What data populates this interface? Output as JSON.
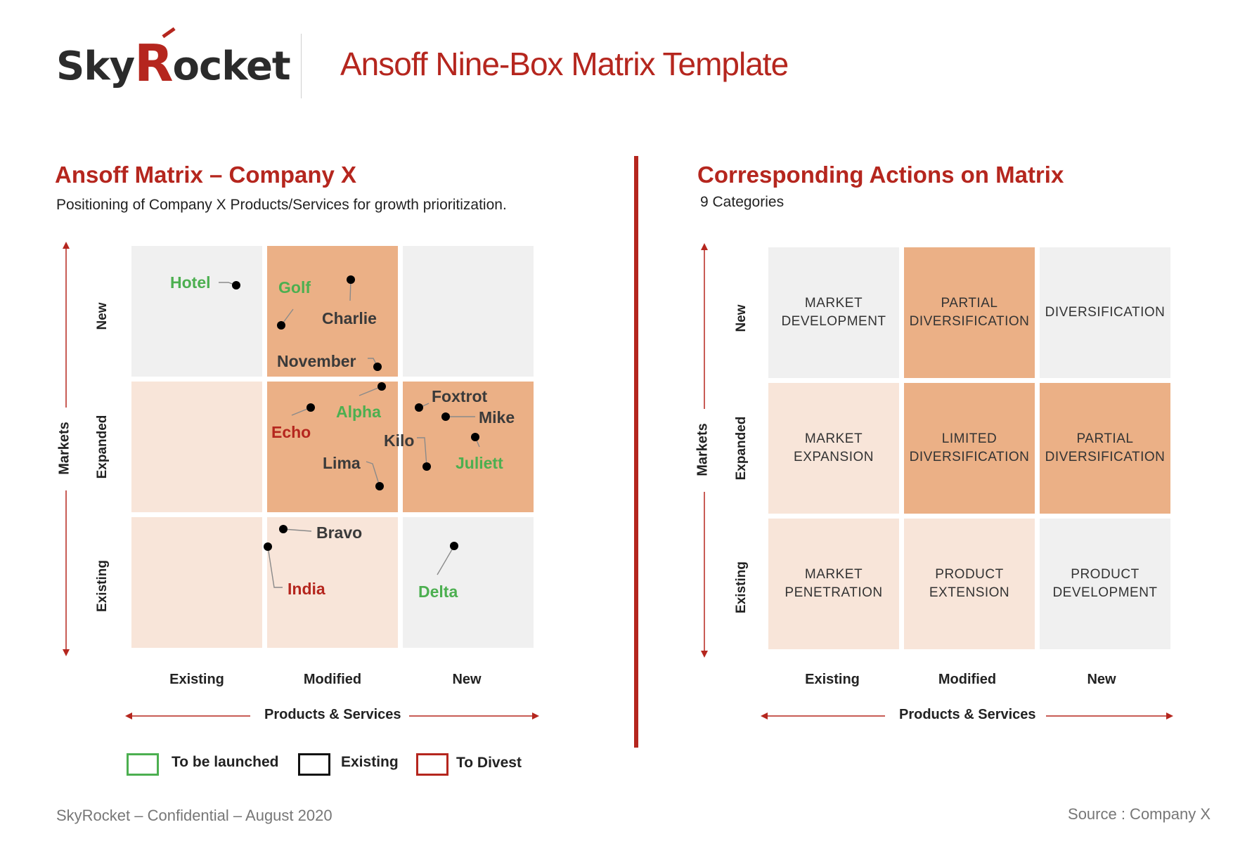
{
  "header": {
    "logo_prefix": "Sky",
    "logo_r": "R",
    "logo_suffix": "ocket",
    "title": "Ansoff Nine-Box Matrix Template"
  },
  "left": {
    "title": "Ansoff Matrix – Company X",
    "subtitle": "Positioning of Company X Products/Services for growth prioritization.",
    "y_axis_title": "Markets",
    "x_axis_title": "Products & Services",
    "row_labels": [
      "New",
      "Expanded",
      "Existing"
    ],
    "col_labels": [
      "Existing",
      "Modified",
      "New"
    ],
    "points": [
      {
        "name": "Hotel",
        "status": "to-be-launched"
      },
      {
        "name": "Golf",
        "status": "to-be-launched"
      },
      {
        "name": "Charlie",
        "status": "existing"
      },
      {
        "name": "November",
        "status": "existing"
      },
      {
        "name": "Alpha",
        "status": "to-be-launched"
      },
      {
        "name": "Echo",
        "status": "to-divest"
      },
      {
        "name": "Lima",
        "status": "existing"
      },
      {
        "name": "Foxtrot",
        "status": "existing"
      },
      {
        "name": "Mike",
        "status": "existing"
      },
      {
        "name": "Kilo",
        "status": "existing"
      },
      {
        "name": "Juliett",
        "status": "to-be-launched"
      },
      {
        "name": "Bravo",
        "status": "existing"
      },
      {
        "name": "India",
        "status": "to-divest"
      },
      {
        "name": "Delta",
        "status": "to-be-launched"
      }
    ],
    "legend": [
      {
        "label": "To be launched",
        "color": "#4caf50"
      },
      {
        "label": "Existing",
        "color": "#111111"
      },
      {
        "label": "To Divest",
        "color": "#b5261e"
      }
    ]
  },
  "right": {
    "title": "Corresponding Actions on Matrix",
    "subtitle": "9 Categories",
    "y_axis_title": "Markets",
    "x_axis_title": "Products & Services",
    "row_labels": [
      "New",
      "Expanded",
      "Existing"
    ],
    "col_labels": [
      "Existing",
      "Modified",
      "New"
    ],
    "cells": [
      [
        "MARKET\nDEVELOPMENT",
        "PARTIAL\nDIVERSIFICATION",
        "DIVERSIFICATION"
      ],
      [
        "MARKET\nEXPANSION",
        "LIMITED\nDIVERSIFICATION",
        "PARTIAL\nDIVERSIFICATION"
      ],
      [
        "MARKET\nPENETRATION",
        "PRODUCT\nEXTENSION",
        "PRODUCT\nDEVELOPMENT"
      ]
    ]
  },
  "colors": {
    "accent": "#b5261e",
    "cell_grey": "#f0f0f0",
    "cell_light": "#f8e5d9",
    "cell_orange": "#ebb086"
  },
  "footer": {
    "left": "SkyRocket – Confidential – August 2020",
    "right": "Source : Company X"
  }
}
